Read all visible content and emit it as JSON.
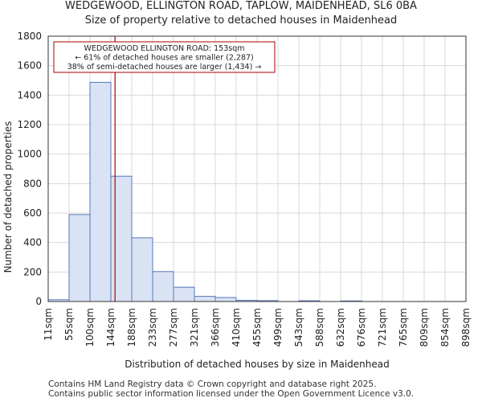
{
  "chart_data": {
    "type": "bar",
    "title": "WEDGEWOOD, ELLINGTON ROAD, TAPLOW, MAIDENHEAD, SL6 0BA",
    "subtitle": "Size of property relative to detached houses in Maidenhead",
    "xlabel": "Distribution of detached houses by size in Maidenhead",
    "ylabel": "Number of detached properties",
    "ylim": [
      0,
      1800
    ],
    "yticks": [
      "0",
      "200",
      "400",
      "600",
      "800",
      "1000",
      "1200",
      "1400",
      "1600",
      "1800"
    ],
    "bin_edges": [
      "11sqm",
      "55sqm",
      "100sqm",
      "144sqm",
      "188sqm",
      "233sqm",
      "277sqm",
      "321sqm",
      "366sqm",
      "410sqm",
      "455sqm",
      "499sqm",
      "543sqm",
      "588sqm",
      "632sqm",
      "676sqm",
      "721sqm",
      "765sqm",
      "809sqm",
      "854sqm",
      "898sqm"
    ],
    "values": [
      12,
      590,
      1487,
      850,
      432,
      203,
      97,
      35,
      27,
      8,
      6,
      0,
      5,
      0,
      4,
      0,
      0,
      0,
      0,
      0
    ],
    "bar_color": "#dae3f4",
    "bar_edge_color": "#5577bb",
    "marker": {
      "value_sqm": 153,
      "bin_position": 3.2,
      "color": "#aa0000",
      "annotation": [
        "WEDGEWOOD ELLINGTON ROAD: 153sqm",
        "← 61% of detached houses are smaller (2,287)",
        "38% of semi-detached houses are larger (1,434) →"
      ]
    }
  },
  "footer": {
    "line1": "Contains HM Land Registry data © Crown copyright and database right 2025.",
    "line2": "Contains public sector information licensed under the Open Government Licence v3.0."
  }
}
